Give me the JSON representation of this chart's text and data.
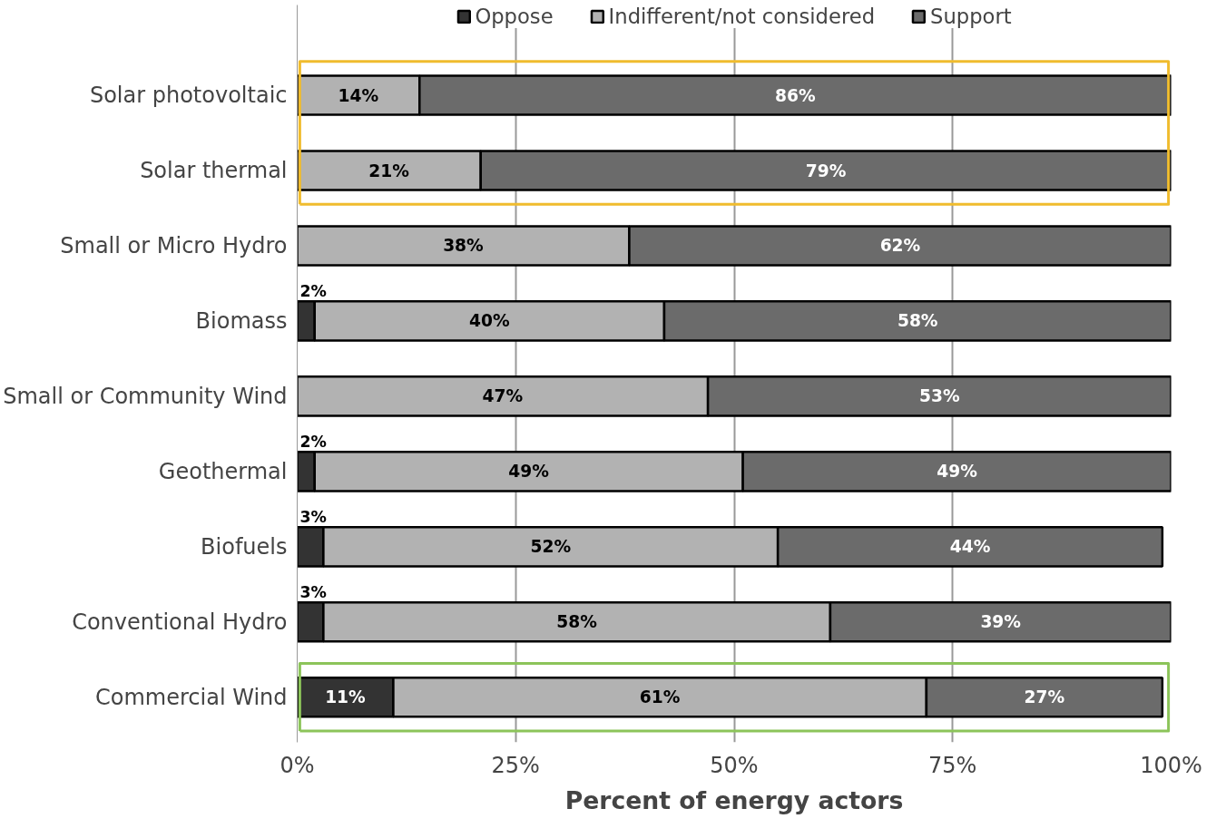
{
  "chart_data": {
    "type": "bar",
    "orientation": "horizontal",
    "stacked": true,
    "categories": [
      "Solar photovoltaic",
      "Solar thermal",
      "Small or Micro Hydro",
      "Biomass",
      "Small or Community Wind",
      "Geothermal",
      "Biofuels",
      "Conventional Hydro",
      "Commercial Wind"
    ],
    "series": [
      {
        "name": "Oppose",
        "color": "#333333",
        "values": [
          0,
          0,
          0,
          2,
          0,
          2,
          3,
          3,
          11
        ],
        "value_labels": [
          null,
          null,
          null,
          "2%",
          null,
          "2%",
          "3%",
          "3%",
          "11%"
        ]
      },
      {
        "name": "Indifferent/not considered",
        "color": "#b2b2b2",
        "values": [
          14,
          21,
          38,
          40,
          47,
          49,
          52,
          58,
          61
        ],
        "value_labels": [
          "14%",
          "21%",
          "38%",
          "40%",
          "47%",
          "49%",
          "52%",
          "58%",
          "61%"
        ]
      },
      {
        "name": "Support",
        "color": "#6b6b6b",
        "values": [
          86,
          79,
          62,
          58,
          53,
          49,
          44,
          39,
          27
        ],
        "value_labels": [
          "86%",
          "79%",
          "62%",
          "58%",
          "53%",
          "49%",
          "44%",
          "39%",
          "27%"
        ]
      }
    ],
    "xlim": [
      0,
      100
    ],
    "xticks": [
      {
        "value": 0,
        "label": "0%"
      },
      {
        "value": 25,
        "label": "25%"
      },
      {
        "value": 50,
        "label": "50%"
      },
      {
        "value": 75,
        "label": "75%"
      },
      {
        "value": 100,
        "label": "100%"
      }
    ],
    "xlabel": "Percent of energy actors",
    "grid": "x",
    "legend": "top"
  }
}
